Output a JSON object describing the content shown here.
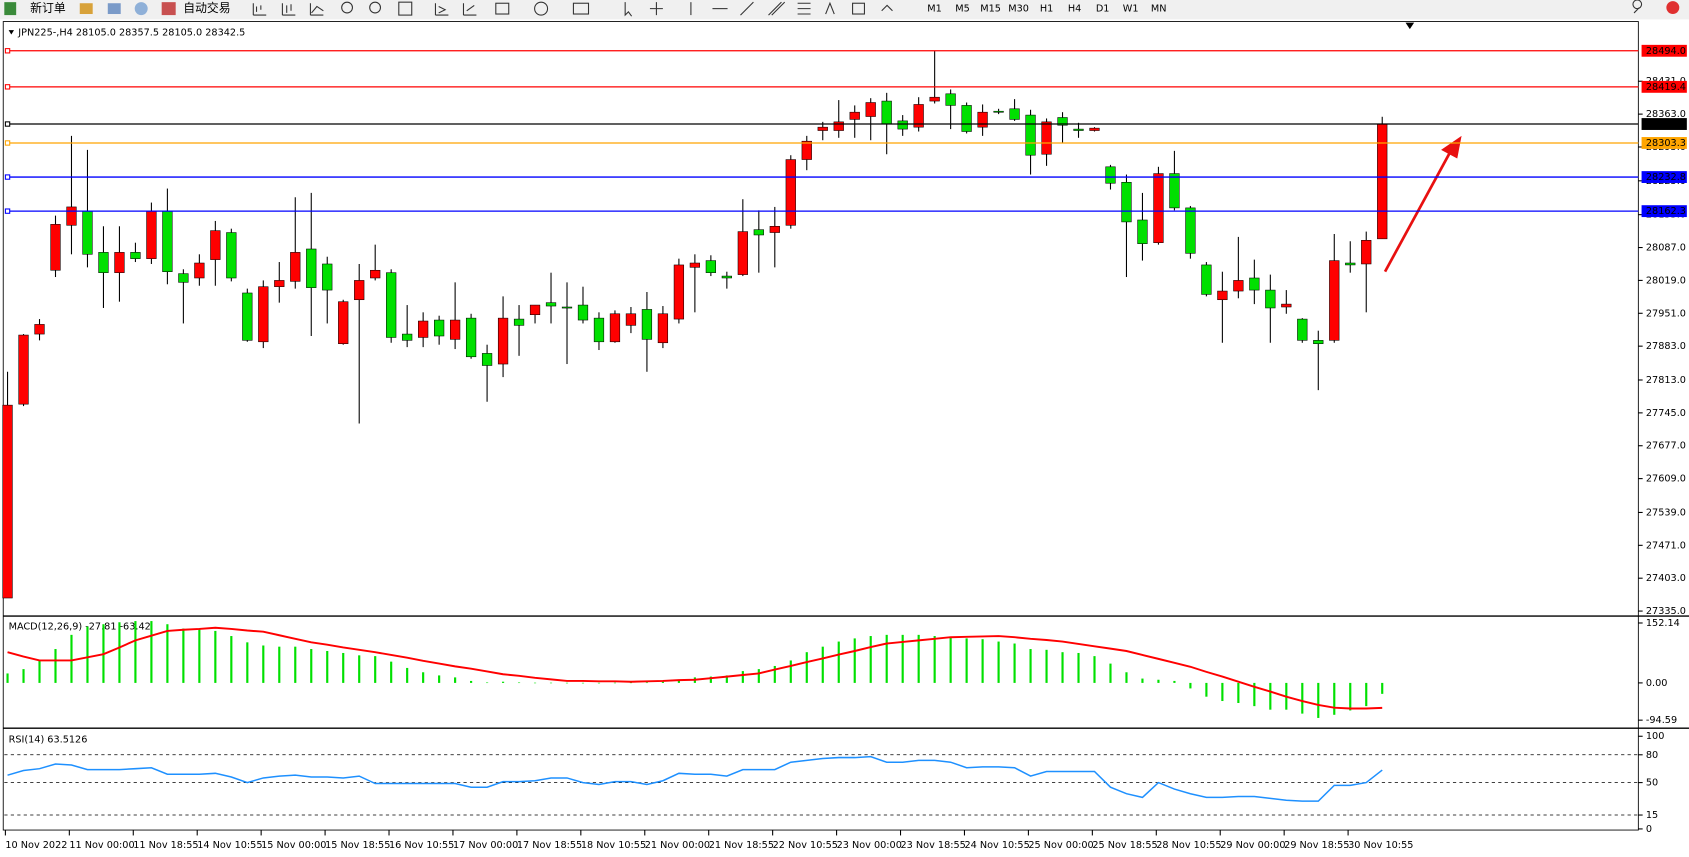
{
  "toolbar": {
    "new_order": "新订单",
    "auto_trading": "自动交易",
    "timeframes": [
      "M1",
      "M5",
      "M15",
      "M30",
      "H1",
      "H4",
      "D1",
      "W1",
      "MN"
    ]
  },
  "chart_data": [
    {
      "type": "candlestick",
      "title": "JPN225-,H4  28105.0 28357.5 28105.0 28342.5",
      "up_color": "#ff0000",
      "down_color": "#00e000",
      "categories": [
        "10 Nov 2022",
        null,
        null,
        null,
        "11 Nov 00:00",
        null,
        null,
        null,
        "11 Nov 18:55",
        null,
        null,
        null,
        "14 Nov 10:55",
        null,
        null,
        null,
        "15 Nov 00:00",
        null,
        null,
        null,
        "15 Nov 18:55",
        null,
        null,
        null,
        "16 Nov 10:55",
        null,
        null,
        null,
        "17 Nov 00:00",
        null,
        null,
        null,
        "17 Nov 18:55",
        null,
        null,
        null,
        "18 Nov 10:55",
        null,
        null,
        null,
        "21 Nov 00:00",
        null,
        null,
        null,
        "21 Nov 18:55",
        null,
        null,
        null,
        "22 Nov 10:55",
        null,
        null,
        null,
        "23 Nov 00:00",
        null,
        null,
        null,
        "23 Nov 18:55",
        null,
        null,
        null,
        "24 Nov 10:55",
        null,
        null,
        null,
        "25 Nov 00:00",
        null,
        null,
        null,
        "25 Nov 18:55",
        null,
        null,
        null,
        "28 Nov 10:55",
        null,
        null,
        null,
        "29 Nov 00:00",
        null,
        null,
        null,
        "29 Nov 18:55",
        null,
        null,
        null,
        "30 Nov 10:55",
        null,
        null
      ],
      "open": [
        27362,
        27763,
        27908,
        28040,
        28133,
        28162,
        28077,
        28035,
        28077,
        28064,
        28162,
        28033,
        28024,
        28062,
        28118,
        27993,
        27892,
        28006,
        28017,
        28084,
        28053,
        27888,
        27979,
        28024,
        28035,
        27908,
        27901,
        27937,
        27897,
        27941,
        27868,
        27846,
        27939,
        27948,
        27973,
        27964,
        27968,
        27941,
        27892,
        27926,
        27959,
        27890,
        27939,
        28046,
        28060,
        28028,
        28031,
        28124,
        28118,
        28133,
        28269,
        28329,
        28329,
        28352,
        28358,
        28390,
        28349,
        28336,
        28390,
        28405,
        28381,
        28336,
        28369,
        28374,
        28361,
        28280,
        28356,
        28332,
        28329,
        28254,
        28222,
        28144,
        28097,
        28240,
        28169,
        28051,
        27979,
        27997,
        28024,
        27999,
        27964,
        27939,
        27895,
        27895,
        28055,
        28053,
        28105
      ],
      "high": [
        27830,
        27908,
        27939,
        28153,
        28318,
        28289,
        28131,
        28131,
        28097,
        28180,
        28209,
        28042,
        28073,
        28142,
        28126,
        28002,
        28019,
        28057,
        28191,
        28200,
        28068,
        27979,
        28053,
        28093,
        28042,
        27968,
        27953,
        27946,
        28015,
        27950,
        27886,
        27986,
        27968,
        27968,
        28035,
        28015,
        28006,
        27953,
        27957,
        27964,
        27995,
        27966,
        28064,
        28073,
        28071,
        28037,
        28187,
        28164,
        28171,
        28278,
        28318,
        28347,
        28392,
        28381,
        28396,
        28407,
        28361,
        28398,
        28494,
        28414,
        28387,
        28383,
        28374,
        28394,
        28372,
        28354,
        28367,
        28345,
        28336,
        28258,
        28238,
        28200,
        28254,
        28287,
        28173,
        28057,
        28037,
        28109,
        28062,
        28031,
        27999,
        27941,
        27915,
        28115,
        28100,
        28120,
        28357.5
      ],
      "low": [
        27362,
        27759,
        27895,
        28026,
        28073,
        28046,
        27962,
        27975,
        28057,
        28053,
        28011,
        27930,
        28008,
        28008,
        28017,
        27892,
        27879,
        27973,
        28002,
        27904,
        27930,
        27886,
        27723,
        28019,
        27890,
        27881,
        27881,
        27886,
        27877,
        27857,
        27768,
        27819,
        27863,
        27930,
        27930,
        27846,
        27930,
        27875,
        27890,
        27910,
        27830,
        27879,
        27930,
        27953,
        28028,
        28002,
        28028,
        28035,
        28046,
        28126,
        28247,
        28309,
        28314,
        28314,
        28309,
        28280,
        28318,
        28327,
        28385,
        28332,
        28323,
        28318,
        28363,
        28349,
        28238,
        28256,
        28303,
        28314,
        28327,
        28207,
        28026,
        28060,
        28093,
        28164,
        28064,
        27986,
        27890,
        27982,
        27970,
        27890,
        27950,
        27890,
        27792,
        27890,
        28035,
        27953,
        28105
      ],
      "close": [
        27761,
        27906,
        27928,
        28135,
        28171,
        28073,
        28035,
        28077,
        28064,
        28162,
        28037,
        28015,
        28055,
        28122,
        28024,
        27895,
        28006,
        28019,
        28077,
        28004,
        27999,
        27975,
        28019,
        28040,
        27901,
        27895,
        27935,
        27904,
        27937,
        27861,
        27843,
        27941,
        27926,
        27968,
        27966,
        27962,
        27937,
        27892,
        27950,
        27950,
        27897,
        27950,
        28051,
        28055,
        28035,
        28024,
        28120,
        28113,
        28131,
        28269,
        28307,
        28336,
        28347,
        28367,
        28387,
        28343,
        28332,
        28383,
        28398,
        28381,
        28327,
        28367,
        28367,
        28352,
        28278,
        28347,
        28340,
        28329,
        28334,
        28220,
        28140,
        28095,
        28240,
        28169,
        28075,
        27990,
        27997,
        28019,
        27999,
        27962,
        27970,
        27895,
        27888,
        28060,
        28051,
        28102,
        28342.5
      ],
      "ylim": [
        27328,
        28550
      ],
      "yticks": [
        {
          "value": 28431,
          "label": "28431.0"
        },
        {
          "value": 28363,
          "label": "28363.0"
        },
        {
          "value": 28295,
          "label": "28295.0"
        },
        {
          "value": 28225,
          "label": "28225.0"
        },
        {
          "value": 28155,
          "label": "28155.0"
        },
        {
          "value": 28087,
          "label": "28087.0"
        },
        {
          "value": 28019,
          "label": "28019.0"
        },
        {
          "value": 27951,
          "label": "27951.0"
        },
        {
          "value": 27883,
          "label": "27883.0"
        },
        {
          "value": 27813,
          "label": "27813.0"
        },
        {
          "value": 27745,
          "label": "27745.0"
        },
        {
          "value": 27677,
          "label": "27677.0"
        },
        {
          "value": 27609,
          "label": "27609.0"
        },
        {
          "value": 27539,
          "label": "27539.0"
        },
        {
          "value": 27471,
          "label": "27471.0"
        },
        {
          "value": 27403,
          "label": "27403.0"
        },
        {
          "value": 27335,
          "label": "27335.0"
        }
      ],
      "price_lines": [
        {
          "value": 28494,
          "label": "28494.0",
          "color": "#ff0000"
        },
        {
          "value": 28419.4,
          "label": "28419.4",
          "color": "#ff0000"
        },
        {
          "value": 28342.5,
          "label": "28342.5",
          "color": "#000000"
        },
        {
          "value": 28303.3,
          "label": "28303.3",
          "color": "#ffa500"
        },
        {
          "value": 28232.8,
          "label": "28232.8",
          "color": "#0000ff"
        },
        {
          "value": 28162.3,
          "label": "28162.3",
          "color": "#0000ff"
        }
      ]
    },
    {
      "type": "macd",
      "title": "MACD(12,26,9) -27.81 -63.42",
      "hist_color": "#00e000",
      "signal_color": "#ff0000",
      "histogram": [
        24,
        35,
        57,
        86,
        122,
        143,
        149,
        154,
        157,
        157,
        149,
        138,
        138,
        132,
        119,
        103,
        95,
        92,
        92,
        86,
        81,
        76,
        70,
        68,
        54,
        38,
        27,
        19,
        14,
        5,
        1,
        3,
        1,
        0.5,
        0.5,
        0.3,
        0.2,
        0.2,
        0.5,
        0.8,
        1,
        3,
        8,
        14,
        16,
        19,
        30,
        35,
        43,
        57,
        78,
        92,
        105,
        113,
        119,
        122,
        122,
        122,
        119,
        116,
        113,
        111,
        105,
        100,
        86,
        84,
        78,
        76,
        68,
        49,
        27,
        11,
        8,
        5,
        -14,
        -35,
        -46,
        -51,
        -59,
        -68,
        -68,
        -78,
        -89,
        -81,
        -70,
        -59,
        -27.81
      ],
      "signal": [
        78,
        67,
        57,
        57,
        57,
        65,
        73,
        90,
        108,
        120,
        132,
        135,
        137,
        140,
        137,
        133,
        130,
        121,
        112,
        103,
        97,
        90,
        84,
        78,
        71,
        64,
        56,
        49,
        42,
        36,
        29,
        22,
        18,
        13,
        9,
        5,
        5,
        4,
        4,
        3,
        4,
        5,
        7,
        8,
        12,
        16,
        20,
        24,
        34,
        43,
        53,
        62,
        72,
        81,
        91,
        100,
        104,
        108,
        112,
        116,
        117,
        118,
        119,
        116,
        112,
        109,
        105,
        99,
        93,
        87,
        81,
        71,
        61,
        51,
        41,
        28,
        16,
        3,
        -10,
        -22,
        -35,
        -46,
        -56,
        -63,
        -65,
        -65,
        -63.42
      ],
      "ylim": [
        -105.4,
        165.6
      ],
      "yticks": [
        152.14,
        {
          "value": 0,
          "label": "0.00"
        },
        -94.59
      ]
    },
    {
      "type": "line",
      "title": "RSI(14) 63.5126",
      "color": "#1e90ff",
      "level_color": "#000000",
      "values": [
        58,
        63,
        65,
        70,
        69,
        64,
        64,
        64,
        65,
        66,
        59,
        59,
        59,
        60,
        56,
        50,
        55,
        57,
        58,
        56,
        56,
        55,
        57,
        49,
        49,
        49,
        49,
        49,
        49,
        45,
        45,
        51,
        51,
        52,
        55,
        55,
        50,
        48,
        51,
        51,
        48,
        52,
        60,
        59,
        59,
        57,
        64,
        64,
        64,
        72,
        74,
        76,
        77,
        77,
        78,
        72,
        72,
        74,
        74,
        72,
        66,
        67,
        67,
        66,
        57,
        62,
        62,
        62,
        62,
        45,
        38,
        34,
        50,
        43,
        38,
        34,
        34,
        35,
        35,
        33,
        31,
        30,
        30,
        47,
        47,
        50,
        63.5126
      ],
      "ylim": [
        -4.7,
        105.8
      ],
      "yticks": [
        100,
        80,
        50,
        15,
        0
      ],
      "levels": [
        80,
        50,
        15
      ]
    }
  ]
}
